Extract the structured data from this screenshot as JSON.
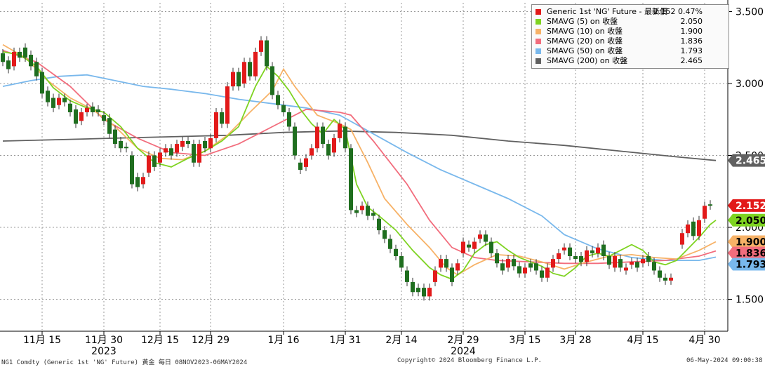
{
  "chart_data": {
    "type": "candlestick",
    "title": "Generic 1st 'NG' Future",
    "yrange": [
      1.25,
      3.6
    ],
    "yticks": [
      "3.500",
      "3.000",
      "2.500",
      "2.000",
      "1.500"
    ],
    "ytick_values": [
      3.5,
      3.0,
      2.5,
      2.0,
      1.5
    ],
    "xtick_labels": [
      "11月 15",
      "11月 30",
      "12月 15",
      "12月 29",
      "1月 16",
      "1月 31",
      "2月 14",
      "2月 29",
      "3月 15",
      "3月 28",
      "4月 15",
      "4月 30"
    ],
    "xtick_days": [
      7,
      18,
      28,
      37,
      50,
      61,
      71,
      82,
      93,
      102,
      114,
      125
    ],
    "year_labels": [
      {
        "label": "2023",
        "day": 18
      },
      {
        "label": "2024",
        "day": 82
      }
    ],
    "num_days": 129,
    "last_value_tags": [
      {
        "label": "2.465",
        "value": 2.465,
        "color": "#606060",
        "text_color": "#ffffff"
      },
      {
        "label": "2.152",
        "value": 2.152,
        "color": "#e21a1a",
        "text_color": "#ffffff"
      },
      {
        "label": "2.050",
        "value": 2.05,
        "color": "#7ed321",
        "text_color": "#000000"
      },
      {
        "label": "1.900",
        "value": 1.9,
        "color": "#f7b267",
        "text_color": "#000000"
      },
      {
        "label": "1.836",
        "value": 1.836,
        "color": "#f26d7d",
        "text_color": "#000000"
      },
      {
        "label": "1.793",
        "value": 1.793,
        "color": "#79b8ec",
        "text_color": "#000000"
      }
    ],
    "series": [
      {
        "name": "SMAVG (5)",
        "color": "#7ed321",
        "values": [
          [
            0,
            3.22
          ],
          [
            3,
            3.2
          ],
          [
            6,
            3.12
          ],
          [
            9,
            2.97
          ],
          [
            12,
            2.88
          ],
          [
            15,
            2.83
          ],
          [
            18,
            2.8
          ],
          [
            21,
            2.7
          ],
          [
            24,
            2.55
          ],
          [
            27,
            2.45
          ],
          [
            30,
            2.42
          ],
          [
            33,
            2.48
          ],
          [
            36,
            2.53
          ],
          [
            39,
            2.6
          ],
          [
            42,
            2.7
          ],
          [
            45,
            2.98
          ],
          [
            47,
            3.12
          ],
          [
            49,
            3.05
          ],
          [
            51,
            2.95
          ],
          [
            53,
            2.82
          ],
          [
            55,
            2.72
          ],
          [
            57,
            2.65
          ],
          [
            59,
            2.75
          ],
          [
            61,
            2.68
          ],
          [
            63,
            2.3
          ],
          [
            65,
            2.14
          ],
          [
            67,
            2.08
          ],
          [
            70,
            1.98
          ],
          [
            73,
            1.84
          ],
          [
            76,
            1.72
          ],
          [
            78,
            1.67
          ],
          [
            80,
            1.64
          ],
          [
            82,
            1.7
          ],
          [
            84,
            1.82
          ],
          [
            86,
            1.88
          ],
          [
            88,
            1.9
          ],
          [
            90,
            1.84
          ],
          [
            92,
            1.79
          ],
          [
            94,
            1.76
          ],
          [
            96,
            1.73
          ],
          [
            98,
            1.68
          ],
          [
            100,
            1.66
          ],
          [
            102,
            1.72
          ],
          [
            104,
            1.8
          ],
          [
            106,
            1.82
          ],
          [
            108,
            1.8
          ],
          [
            110,
            1.84
          ],
          [
            112,
            1.88
          ],
          [
            114,
            1.84
          ],
          [
            116,
            1.76
          ],
          [
            118,
            1.74
          ],
          [
            120,
            1.77
          ],
          [
            122,
            1.85
          ],
          [
            124,
            1.93
          ],
          [
            126,
            2.02
          ],
          [
            127,
            2.05
          ]
        ]
      },
      {
        "name": "SMAVG (10)",
        "color": "#f7b267",
        "values": [
          [
            0,
            3.27
          ],
          [
            4,
            3.18
          ],
          [
            8,
            3.02
          ],
          [
            12,
            2.9
          ],
          [
            16,
            2.82
          ],
          [
            20,
            2.7
          ],
          [
            24,
            2.55
          ],
          [
            28,
            2.48
          ],
          [
            32,
            2.47
          ],
          [
            36,
            2.53
          ],
          [
            40,
            2.64
          ],
          [
            44,
            2.8
          ],
          [
            48,
            2.95
          ],
          [
            50,
            3.1
          ],
          [
            52,
            2.98
          ],
          [
            56,
            2.78
          ],
          [
            60,
            2.72
          ],
          [
            62,
            2.68
          ],
          [
            65,
            2.45
          ],
          [
            68,
            2.2
          ],
          [
            72,
            2.02
          ],
          [
            76,
            1.86
          ],
          [
            79,
            1.72
          ],
          [
            81,
            1.67
          ],
          [
            84,
            1.74
          ],
          [
            88,
            1.81
          ],
          [
            92,
            1.8
          ],
          [
            96,
            1.76
          ],
          [
            100,
            1.71
          ],
          [
            104,
            1.76
          ],
          [
            108,
            1.8
          ],
          [
            112,
            1.81
          ],
          [
            116,
            1.79
          ],
          [
            120,
            1.78
          ],
          [
            124,
            1.84
          ],
          [
            127,
            1.9
          ]
        ]
      },
      {
        "name": "SMAVG (20)",
        "color": "#f26d7d",
        "values": [
          [
            0,
            3.23
          ],
          [
            6,
            3.15
          ],
          [
            12,
            2.98
          ],
          [
            18,
            2.75
          ],
          [
            24,
            2.62
          ],
          [
            30,
            2.52
          ],
          [
            36,
            2.5
          ],
          [
            42,
            2.58
          ],
          [
            48,
            2.7
          ],
          [
            54,
            2.82
          ],
          [
            60,
            2.8
          ],
          [
            62,
            2.78
          ],
          [
            66,
            2.6
          ],
          [
            72,
            2.3
          ],
          [
            76,
            2.05
          ],
          [
            80,
            1.86
          ],
          [
            84,
            1.79
          ],
          [
            88,
            1.77
          ],
          [
            94,
            1.76
          ],
          [
            100,
            1.75
          ],
          [
            106,
            1.75
          ],
          [
            112,
            1.76
          ],
          [
            118,
            1.77
          ],
          [
            124,
            1.8
          ],
          [
            127,
            1.836
          ]
        ]
      },
      {
        "name": "SMAVG (50)",
        "color": "#79b8ec",
        "values": [
          [
            0,
            2.98
          ],
          [
            5,
            3.02
          ],
          [
            10,
            3.05
          ],
          [
            15,
            3.06
          ],
          [
            20,
            3.02
          ],
          [
            25,
            2.98
          ],
          [
            30,
            2.96
          ],
          [
            36,
            2.93
          ],
          [
            42,
            2.89
          ],
          [
            48,
            2.86
          ],
          [
            54,
            2.83
          ],
          [
            60,
            2.78
          ],
          [
            66,
            2.65
          ],
          [
            72,
            2.52
          ],
          [
            78,
            2.4
          ],
          [
            84,
            2.3
          ],
          [
            90,
            2.2
          ],
          [
            96,
            2.08
          ],
          [
            100,
            1.95
          ],
          [
            106,
            1.85
          ],
          [
            112,
            1.79
          ],
          [
            118,
            1.77
          ],
          [
            124,
            1.77
          ],
          [
            127,
            1.793
          ]
        ]
      },
      {
        "name": "SMAVG (200)",
        "color": "#606060",
        "values": [
          [
            0,
            2.6
          ],
          [
            10,
            2.61
          ],
          [
            20,
            2.62
          ],
          [
            30,
            2.63
          ],
          [
            40,
            2.64
          ],
          [
            50,
            2.66
          ],
          [
            60,
            2.67
          ],
          [
            70,
            2.66
          ],
          [
            80,
            2.64
          ],
          [
            90,
            2.6
          ],
          [
            100,
            2.57
          ],
          [
            110,
            2.53
          ],
          [
            120,
            2.49
          ],
          [
            127,
            2.465
          ]
        ]
      }
    ],
    "candles": [
      [
        0,
        3.21,
        3.15
      ],
      [
        1,
        3.16,
        3.1
      ],
      [
        2,
        3.12,
        3.22
      ],
      [
        3,
        3.22,
        3.18
      ],
      [
        4,
        3.25,
        3.18
      ],
      [
        5,
        3.2,
        3.12
      ],
      [
        6,
        3.15,
        3.05
      ],
      [
        7,
        3.08,
        2.93
      ],
      [
        8,
        2.95,
        2.87
      ],
      [
        9,
        2.9,
        2.83
      ],
      [
        10,
        2.85,
        2.9
      ],
      [
        11,
        2.9,
        2.87
      ],
      [
        12,
        2.86,
        2.8
      ],
      [
        13,
        2.82,
        2.72
      ],
      [
        14,
        2.74,
        2.8
      ],
      [
        15,
        2.8,
        2.83
      ],
      [
        16,
        2.84,
        2.8
      ],
      [
        17,
        2.82,
        2.8
      ],
      [
        18,
        2.78,
        2.74
      ],
      [
        19,
        2.76,
        2.65
      ],
      [
        20,
        2.68,
        2.58
      ],
      [
        21,
        2.6,
        2.55
      ],
      [
        22,
        2.56,
        2.55
      ],
      [
        23,
        2.5,
        2.3
      ],
      [
        24,
        2.35,
        2.28
      ],
      [
        25,
        2.3,
        2.35
      ],
      [
        26,
        2.38,
        2.5
      ],
      [
        27,
        2.5,
        2.42
      ],
      [
        28,
        2.45,
        2.52
      ],
      [
        29,
        2.52,
        2.55
      ],
      [
        30,
        2.55,
        2.5
      ],
      [
        31,
        2.52,
        2.58
      ],
      [
        32,
        2.56,
        2.6
      ],
      [
        33,
        2.6,
        2.58
      ],
      [
        34,
        2.58,
        2.45
      ],
      [
        35,
        2.45,
        2.58
      ],
      [
        36,
        2.6,
        2.55
      ],
      [
        37,
        2.55,
        2.62
      ],
      [
        38,
        2.62,
        2.8
      ],
      [
        39,
        2.8,
        2.72
      ],
      [
        40,
        2.72,
        2.98
      ],
      [
        41,
        2.98,
        3.08
      ],
      [
        42,
        3.08,
        2.98
      ],
      [
        43,
        3.0,
        3.15
      ],
      [
        44,
        3.15,
        3.05
      ],
      [
        45,
        3.05,
        3.22
      ],
      [
        46,
        3.22,
        3.3
      ],
      [
        47,
        3.3,
        3.12
      ],
      [
        48,
        3.12,
        2.92
      ],
      [
        49,
        2.92,
        2.85
      ],
      [
        50,
        2.85,
        2.8
      ],
      [
        51,
        2.8,
        2.7
      ],
      [
        52,
        2.7,
        2.5
      ],
      [
        53,
        2.45,
        2.4
      ],
      [
        54,
        2.42,
        2.48
      ],
      [
        55,
        2.5,
        2.55
      ],
      [
        56,
        2.55,
        2.7
      ],
      [
        57,
        2.7,
        2.58
      ],
      [
        58,
        2.58,
        2.5
      ],
      [
        59,
        2.52,
        2.62
      ],
      [
        60,
        2.62,
        2.72
      ],
      [
        61,
        2.7,
        2.55
      ],
      [
        62,
        2.55,
        2.12
      ],
      [
        63,
        2.12,
        2.1
      ],
      [
        64,
        2.12,
        2.15
      ],
      [
        65,
        2.15,
        2.08
      ],
      [
        66,
        2.1,
        2.08
      ],
      [
        67,
        2.06,
        1.98
      ],
      [
        68,
        1.98,
        1.92
      ],
      [
        69,
        1.92,
        1.85
      ],
      [
        70,
        1.85,
        1.8
      ],
      [
        71,
        1.8,
        1.72
      ],
      [
        72,
        1.7,
        1.62
      ],
      [
        73,
        1.62,
        1.55
      ],
      [
        74,
        1.58,
        1.55
      ],
      [
        75,
        1.58,
        1.52
      ],
      [
        76,
        1.52,
        1.58
      ],
      [
        77,
        1.62,
        1.7
      ],
      [
        78,
        1.72,
        1.78
      ],
      [
        79,
        1.78,
        1.72
      ],
      [
        80,
        1.72,
        1.62
      ],
      [
        81,
        1.7,
        1.75
      ],
      [
        82,
        1.82,
        1.9
      ],
      [
        83,
        1.88,
        1.86
      ],
      [
        84,
        1.85,
        1.9
      ],
      [
        85,
        1.92,
        1.95
      ],
      [
        86,
        1.95,
        1.9
      ],
      [
        87,
        1.9,
        1.82
      ],
      [
        88,
        1.82,
        1.75
      ],
      [
        89,
        1.75,
        1.7
      ],
      [
        90,
        1.72,
        1.78
      ],
      [
        91,
        1.78,
        1.73
      ],
      [
        92,
        1.73,
        1.68
      ],
      [
        93,
        1.68,
        1.72
      ],
      [
        94,
        1.75,
        1.72
      ],
      [
        95,
        1.75,
        1.7
      ],
      [
        96,
        1.7,
        1.65
      ],
      [
        97,
        1.65,
        1.72
      ],
      [
        98,
        1.72,
        1.78
      ],
      [
        99,
        1.78,
        1.82
      ],
      [
        100,
        1.84,
        1.86
      ],
      [
        101,
        1.86,
        1.8
      ],
      [
        102,
        1.8,
        1.78
      ],
      [
        103,
        1.8,
        1.76
      ],
      [
        104,
        1.76,
        1.84
      ],
      [
        105,
        1.84,
        1.82
      ],
      [
        106,
        1.82,
        1.86
      ],
      [
        107,
        1.88,
        1.8
      ],
      [
        108,
        1.8,
        1.74
      ],
      [
        109,
        1.72,
        1.8
      ],
      [
        110,
        1.78,
        1.72
      ],
      [
        111,
        1.7,
        1.72
      ],
      [
        112,
        1.74,
        1.76
      ],
      [
        113,
        1.76,
        1.72
      ],
      [
        114,
        1.75,
        1.78
      ],
      [
        115,
        1.8,
        1.76
      ],
      [
        116,
        1.76,
        1.7
      ],
      [
        117,
        1.7,
        1.65
      ],
      [
        118,
        1.65,
        1.63
      ],
      [
        119,
        1.63,
        1.65
      ],
      [
        121,
        1.88,
        1.96
      ],
      [
        122,
        1.96,
        2.02
      ],
      [
        123,
        2.04,
        1.94
      ],
      [
        124,
        1.94,
        2.05
      ],
      [
        125,
        2.06,
        2.15
      ],
      [
        126,
        2.16,
        2.152
      ]
    ]
  },
  "legend": [
    {
      "label": "Generic 1st 'NG' Future - 最新價",
      "value": "2.152  0.47%",
      "color": "#e21a1a"
    },
    {
      "label": "SMAVG (5)  on 收盤",
      "value": "2.050",
      "color": "#7ed321"
    },
    {
      "label": "SMAVG (10)  on 收盤",
      "value": "1.900",
      "color": "#f7b267"
    },
    {
      "label": "SMAVG (20)  on 收盤",
      "value": "1.836",
      "color": "#f26d7d"
    },
    {
      "label": "SMAVG (50)  on 收盤",
      "value": "1.793",
      "color": "#79b8ec"
    },
    {
      "label": "SMAVG (200)  on 收盤",
      "value": "2.465",
      "color": "#606060"
    }
  ],
  "footer": {
    "left": "NG1 Comdty (Generic 1st 'NG' Future) 黃金  每日 08NOV2023-06MAY2024",
    "center": "Copyright© 2024 Bloomberg Finance L.P.",
    "right": "06-May-2024 09:00:38"
  },
  "colors": {
    "up": "#e21a1a",
    "down": "#1f6e1f",
    "axis": "#000000"
  }
}
